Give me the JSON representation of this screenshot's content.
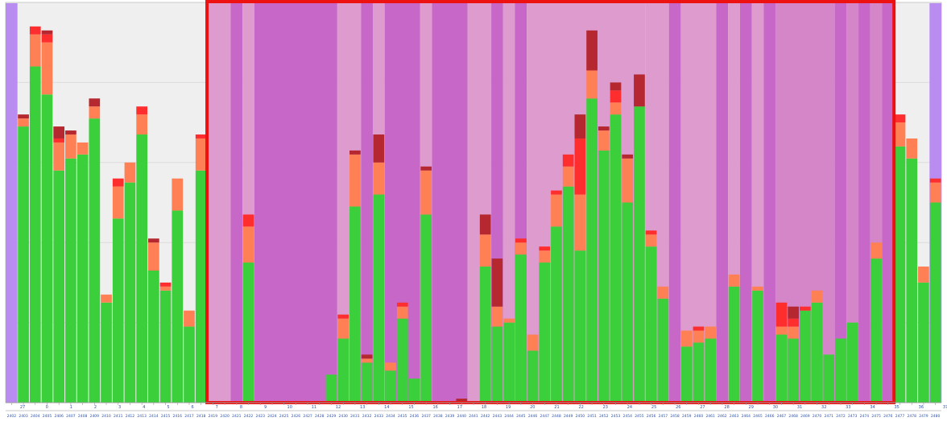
{
  "chart_data": {
    "type": "bar",
    "stacked": true,
    "grid": true,
    "series_colors": [
      "#3ccf3c",
      "#ff8055",
      "#ff2e2e",
      "#b52830"
    ],
    "band_colors": {
      "violet": "#b98cf2",
      "magenta": "#c768c8",
      "pink": "#de9bce",
      "orchid": "#d586c8"
    },
    "highlight_color": "#ee1111",
    "ylim": [
      0,
      100
    ],
    "day_labels": [
      "27",
      "0",
      "1",
      "2",
      "3",
      "4",
      "5",
      "6",
      "7",
      "8",
      "9",
      "10",
      "11",
      "12",
      "13",
      "14",
      "15",
      "16",
      "17",
      "18",
      "19",
      "20",
      "21",
      "22",
      "23",
      "24",
      "25",
      "26",
      "27",
      "28",
      "29",
      "30",
      "31",
      "32",
      "33",
      "34",
      "35",
      "36",
      "37"
    ],
    "tick_labels": [
      "2402",
      "2403",
      "2404",
      "2405",
      "2406",
      "2407",
      "2408",
      "2409",
      "2410",
      "2411",
      "2412",
      "2413",
      "2414",
      "2415",
      "2416",
      "2417",
      "2418",
      "2419",
      "2420",
      "2421",
      "2422",
      "2423",
      "2424",
      "2425",
      "2426",
      "2427",
      "2428",
      "2429",
      "2430",
      "2431",
      "2432",
      "2433",
      "2434",
      "2435",
      "2436",
      "2437",
      "2438",
      "2439",
      "2440",
      "2441",
      "2442",
      "2443",
      "2444",
      "2445",
      "2446",
      "2447",
      "2448",
      "2449",
      "2450",
      "2451",
      "2452",
      "2453",
      "2454",
      "2455",
      "2456",
      "2457",
      "2458",
      "2459",
      "2460",
      "2461",
      "2462",
      "2463",
      "2464",
      "2465",
      "2466",
      "2467",
      "2468",
      "2469",
      "2470",
      "2471",
      "2472",
      "2473",
      "2474",
      "2475",
      "2476",
      "2477",
      "2478",
      "2479",
      "2480"
    ],
    "bars": [
      [
        0,
        0,
        0,
        0
      ],
      [
        69,
        2,
        0,
        1
      ],
      [
        84,
        8,
        2,
        0
      ],
      [
        77,
        13,
        2,
        1
      ],
      [
        58,
        7,
        1,
        3
      ],
      [
        61,
        6,
        0,
        1
      ],
      [
        62,
        3,
        0,
        0
      ],
      [
        71,
        3,
        0,
        2
      ],
      [
        25,
        2,
        0,
        0
      ],
      [
        46,
        8,
        2,
        0
      ],
      [
        55,
        5,
        0,
        0
      ],
      [
        67,
        5,
        2,
        0
      ],
      [
        33,
        7,
        0,
        1
      ],
      [
        28,
        1,
        1,
        0
      ],
      [
        48,
        8,
        0,
        0
      ],
      [
        19,
        4,
        0,
        0
      ],
      [
        58,
        8,
        1,
        0
      ],
      [
        0,
        0,
        0,
        0
      ],
      [
        0,
        0,
        0,
        0
      ],
      [
        0,
        0,
        0,
        0
      ],
      [
        35,
        9,
        3,
        0
      ],
      [
        0,
        0,
        0,
        0
      ],
      [
        0,
        0,
        0,
        0
      ],
      [
        0,
        0,
        0,
        0
      ],
      [
        0,
        0,
        0,
        0
      ],
      [
        0,
        0,
        0,
        0
      ],
      [
        0,
        0,
        0,
        0
      ],
      [
        7,
        0,
        0,
        0
      ],
      [
        16,
        5,
        1,
        0
      ],
      [
        49,
        13,
        0,
        1
      ],
      [
        10,
        1,
        0,
        1
      ],
      [
        52,
        8,
        0,
        7
      ],
      [
        8,
        2,
        0,
        0
      ],
      [
        21,
        3,
        1,
        0
      ],
      [
        6,
        0,
        0,
        0
      ],
      [
        47,
        11,
        0,
        1
      ],
      [
        0,
        0,
        0,
        0
      ],
      [
        0,
        0,
        0,
        0
      ],
      [
        0,
        0,
        0,
        1
      ],
      [
        0,
        0,
        0,
        0
      ],
      [
        34,
        8,
        0,
        5
      ],
      [
        19,
        5,
        0,
        12
      ],
      [
        20,
        1,
        0,
        0
      ],
      [
        37,
        3,
        1,
        0
      ],
      [
        13,
        4,
        0,
        0
      ],
      [
        35,
        3,
        1,
        0
      ],
      [
        44,
        8,
        1,
        0
      ],
      [
        54,
        5,
        3,
        0
      ],
      [
        38,
        14,
        14,
        6
      ],
      [
        76,
        7,
        0,
        10
      ],
      [
        63,
        5,
        0,
        1
      ],
      [
        72,
        3,
        3,
        2
      ],
      [
        50,
        11,
        0,
        1
      ],
      [
        74,
        0,
        0,
        8
      ],
      [
        39,
        3,
        1,
        0
      ],
      [
        26,
        3,
        0,
        0
      ],
      [
        0,
        0,
        0,
        0
      ],
      [
        14,
        4,
        0,
        0
      ],
      [
        15,
        3,
        1,
        0
      ],
      [
        16,
        3,
        0,
        0
      ],
      [
        0,
        0,
        0,
        0
      ],
      [
        29,
        3,
        0,
        0
      ],
      [
        0,
        0,
        0,
        0
      ],
      [
        28,
        1,
        0,
        0
      ],
      [
        0,
        0,
        0,
        0
      ],
      [
        17,
        2,
        6,
        0
      ],
      [
        16,
        3,
        2,
        3
      ],
      [
        23,
        0,
        1,
        0
      ],
      [
        25,
        3,
        0,
        0
      ],
      [
        12,
        0,
        0,
        0
      ],
      [
        16,
        0,
        0,
        0
      ],
      [
        20,
        0,
        0,
        0
      ],
      [
        0,
        0,
        0,
        0
      ],
      [
        36,
        4,
        0,
        0
      ],
      [
        0,
        0,
        0,
        0
      ],
      [
        64,
        6,
        2,
        0
      ],
      [
        61,
        5,
        0,
        0
      ],
      [
        30,
        4,
        0,
        0
      ],
      [
        50,
        5,
        1,
        0
      ]
    ],
    "shading": [
      {
        "from": 0,
        "to": 0,
        "color": "violet"
      },
      {
        "from": 17,
        "to": 18,
        "color": "pink"
      },
      {
        "from": 19,
        "to": 19,
        "color": "magenta"
      },
      {
        "from": 20,
        "to": 20,
        "color": "pink"
      },
      {
        "from": 21,
        "to": 27,
        "color": "magenta"
      },
      {
        "from": 28,
        "to": 29,
        "color": "pink"
      },
      {
        "from": 30,
        "to": 30,
        "color": "magenta"
      },
      {
        "from": 31,
        "to": 31,
        "color": "pink"
      },
      {
        "from": 32,
        "to": 34,
        "color": "magenta"
      },
      {
        "from": 35,
        "to": 35,
        "color": "pink"
      },
      {
        "from": 36,
        "to": 38,
        "color": "magenta"
      },
      {
        "from": 39,
        "to": 40,
        "color": "pink"
      },
      {
        "from": 41,
        "to": 41,
        "color": "magenta"
      },
      {
        "from": 42,
        "to": 42,
        "color": "pink"
      },
      {
        "from": 43,
        "to": 43,
        "color": "magenta"
      },
      {
        "from": 44,
        "to": 53,
        "color": "pink"
      },
      {
        "from": 54,
        "to": 55,
        "color": "pink"
      },
      {
        "from": 56,
        "to": 56,
        "color": "magenta"
      },
      {
        "from": 57,
        "to": 59,
        "color": "pink"
      },
      {
        "from": 60,
        "to": 60,
        "color": "magenta"
      },
      {
        "from": 61,
        "to": 61,
        "color": "pink"
      },
      {
        "from": 62,
        "to": 62,
        "color": "magenta"
      },
      {
        "from": 63,
        "to": 63,
        "color": "pink"
      },
      {
        "from": 64,
        "to": 64,
        "color": "magenta"
      },
      {
        "from": 65,
        "to": 69,
        "color": "orchid"
      },
      {
        "from": 70,
        "to": 70,
        "color": "magenta"
      },
      {
        "from": 71,
        "to": 71,
        "color": "orchid"
      },
      {
        "from": 72,
        "to": 72,
        "color": "magenta"
      },
      {
        "from": 73,
        "to": 73,
        "color": "orchid"
      },
      {
        "from": 74,
        "to": 74,
        "color": "magenta"
      },
      {
        "from": 78,
        "to": 78,
        "color": "violet"
      }
    ],
    "highlight": {
      "from": 17,
      "to": 74
    }
  }
}
